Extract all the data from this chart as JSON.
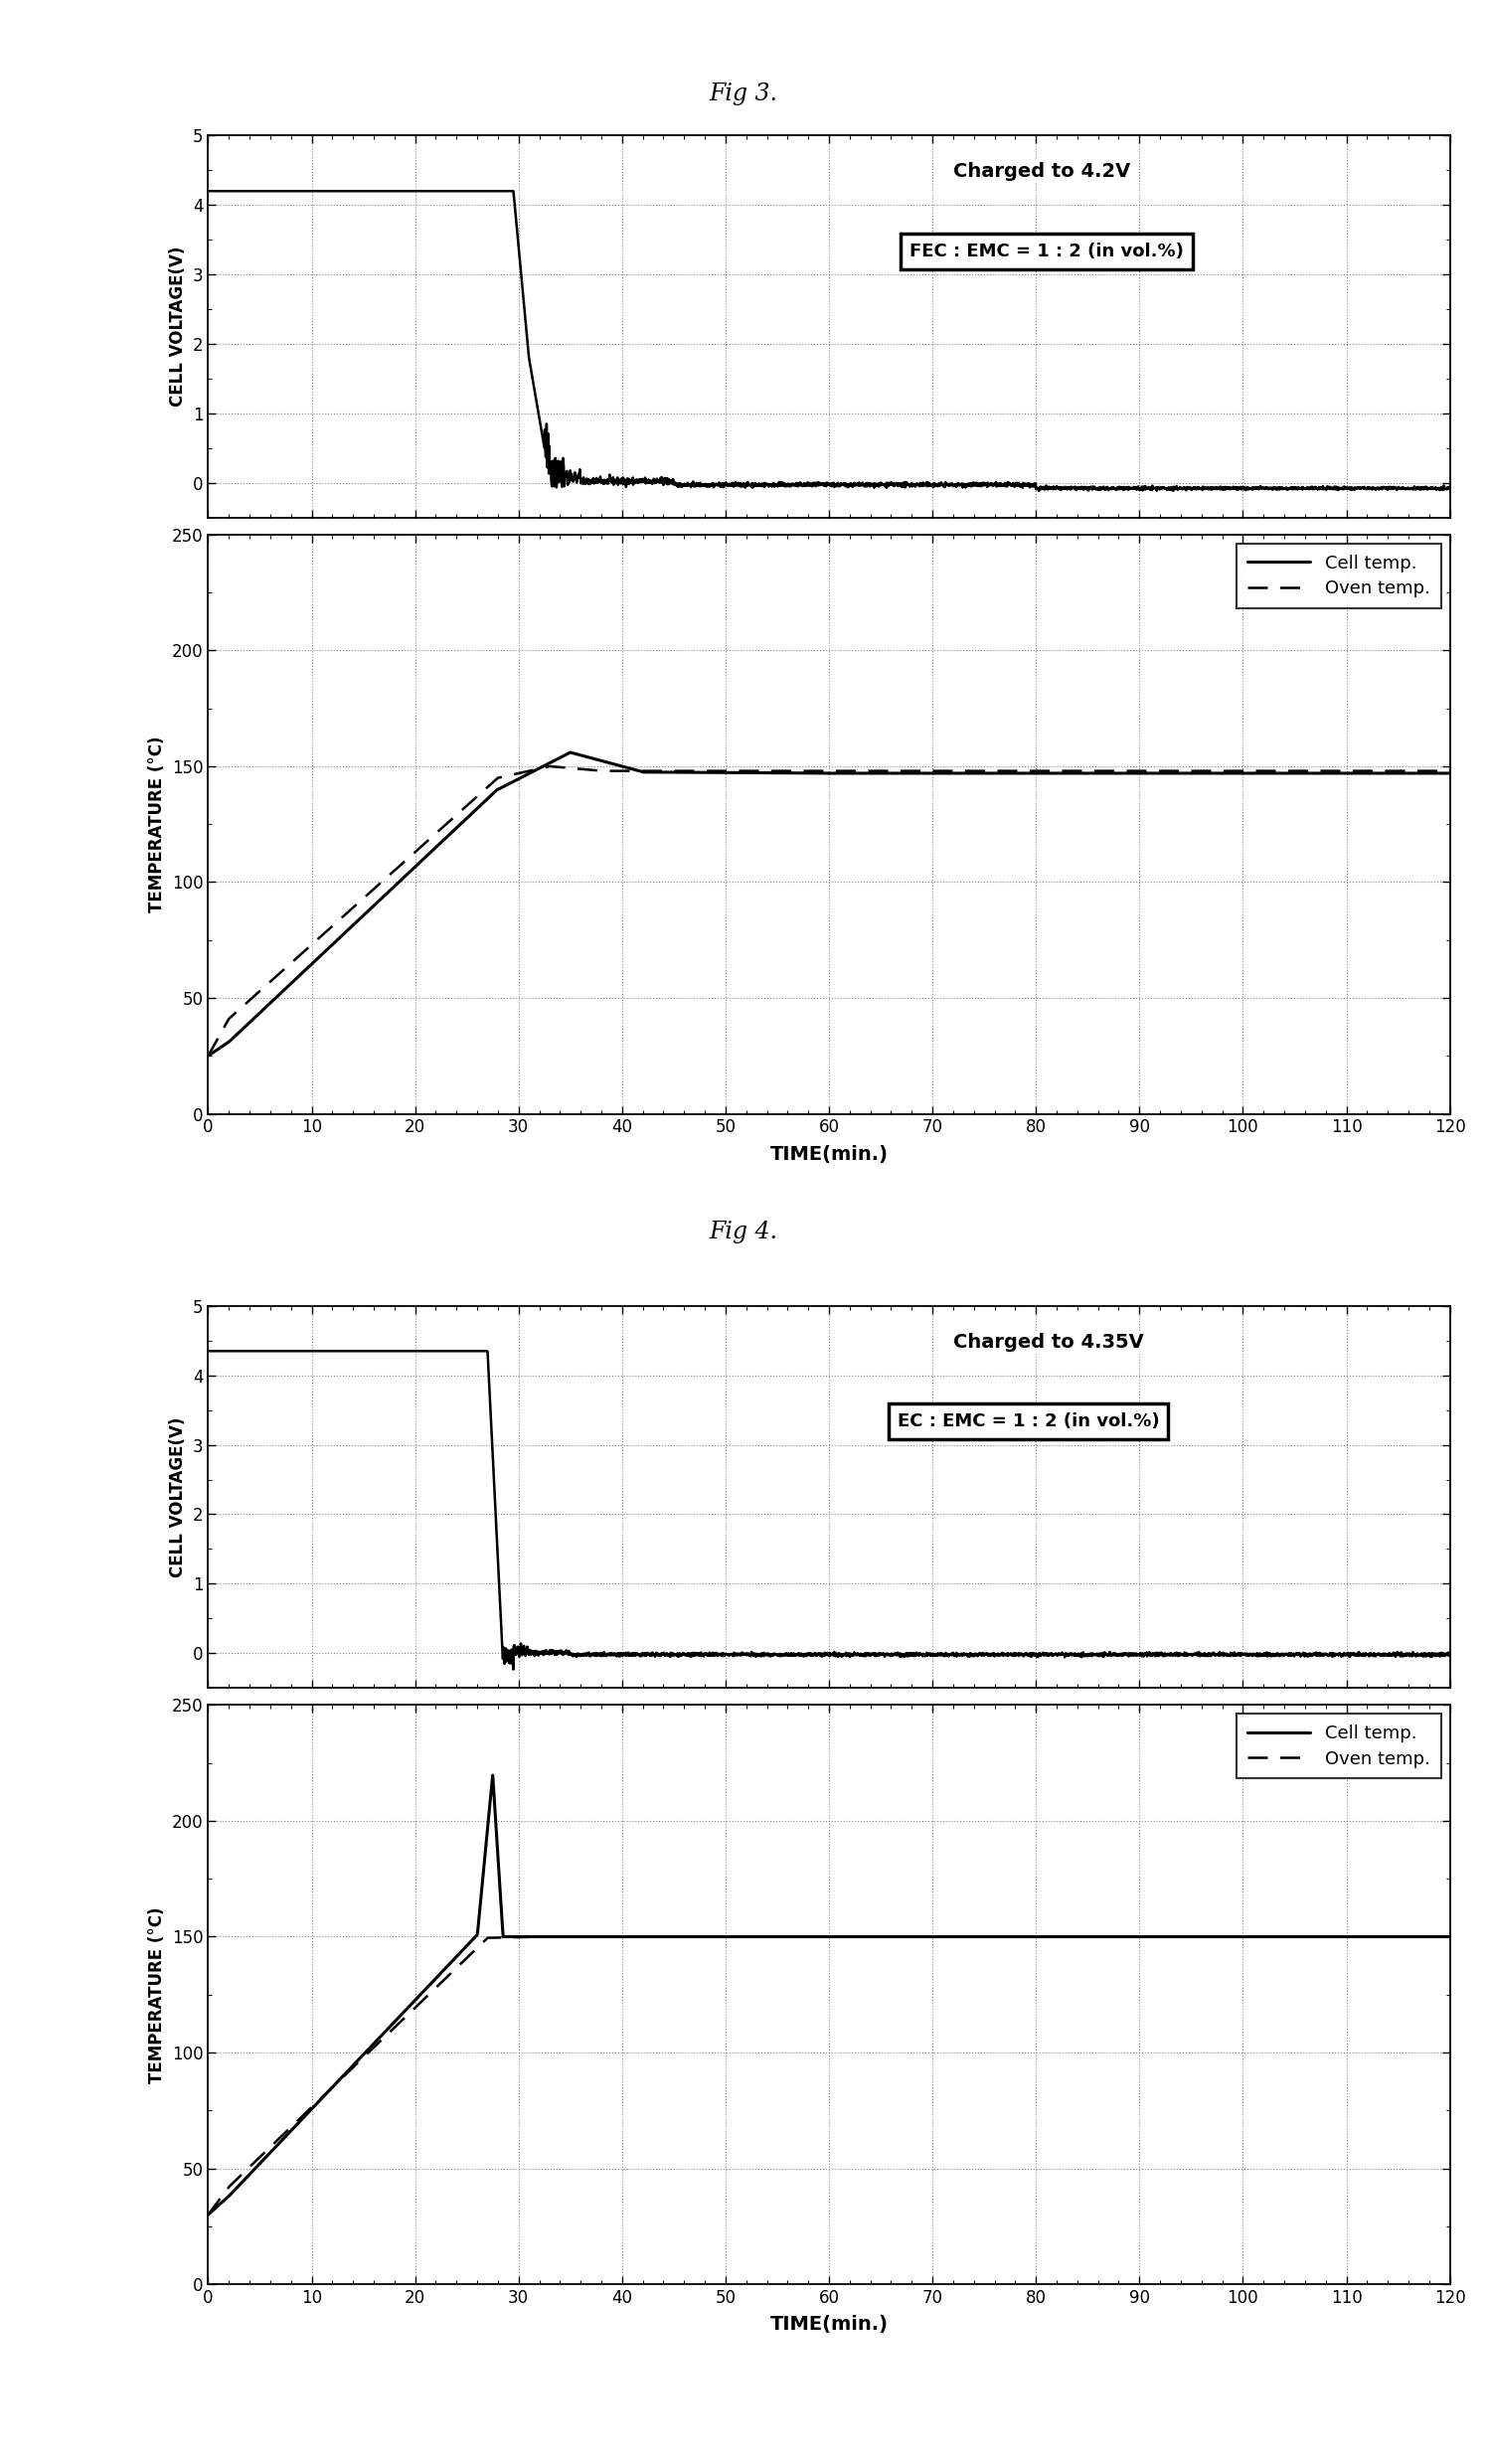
{
  "fig3_title": "Fig 3.",
  "fig4_title": "Fig 4.",
  "fig3_voltage_annotation": "Charged to 4.2V",
  "fig3_voltage_box": "FEC : EMC = 1 : 2 (in vol.%)",
  "fig4_voltage_annotation": "Charged to 4.35V",
  "fig4_voltage_box": "EC : EMC = 1 : 2 (in vol.%)",
  "xlabel": "TIME(min.)",
  "ylabel_voltage": "CELL VOLTAGE(V)",
  "ylabel_temp": "TEMPERATURE (°C)",
  "legend_cell": "Cell temp.",
  "legend_oven": "Oven temp.",
  "xlim": [
    0,
    120
  ],
  "xticks": [
    0,
    10,
    20,
    30,
    40,
    50,
    60,
    70,
    80,
    90,
    100,
    110,
    120
  ],
  "fig3_voltage_ylim": [
    -0.5,
    5
  ],
  "fig3_voltage_yticks": [
    0,
    1,
    2,
    3,
    4,
    5
  ],
  "fig3_temp_ylim": [
    0,
    250
  ],
  "fig3_temp_yticks": [
    0,
    50,
    100,
    150,
    200,
    250
  ],
  "fig4_voltage_ylim": [
    -0.5,
    5
  ],
  "fig4_voltage_yticks": [
    0,
    1,
    2,
    3,
    4,
    5
  ],
  "fig4_temp_ylim": [
    0,
    250
  ],
  "fig4_temp_yticks": [
    0,
    50,
    100,
    150,
    200,
    250
  ],
  "background_color": "#ffffff",
  "line_color": "#000000"
}
